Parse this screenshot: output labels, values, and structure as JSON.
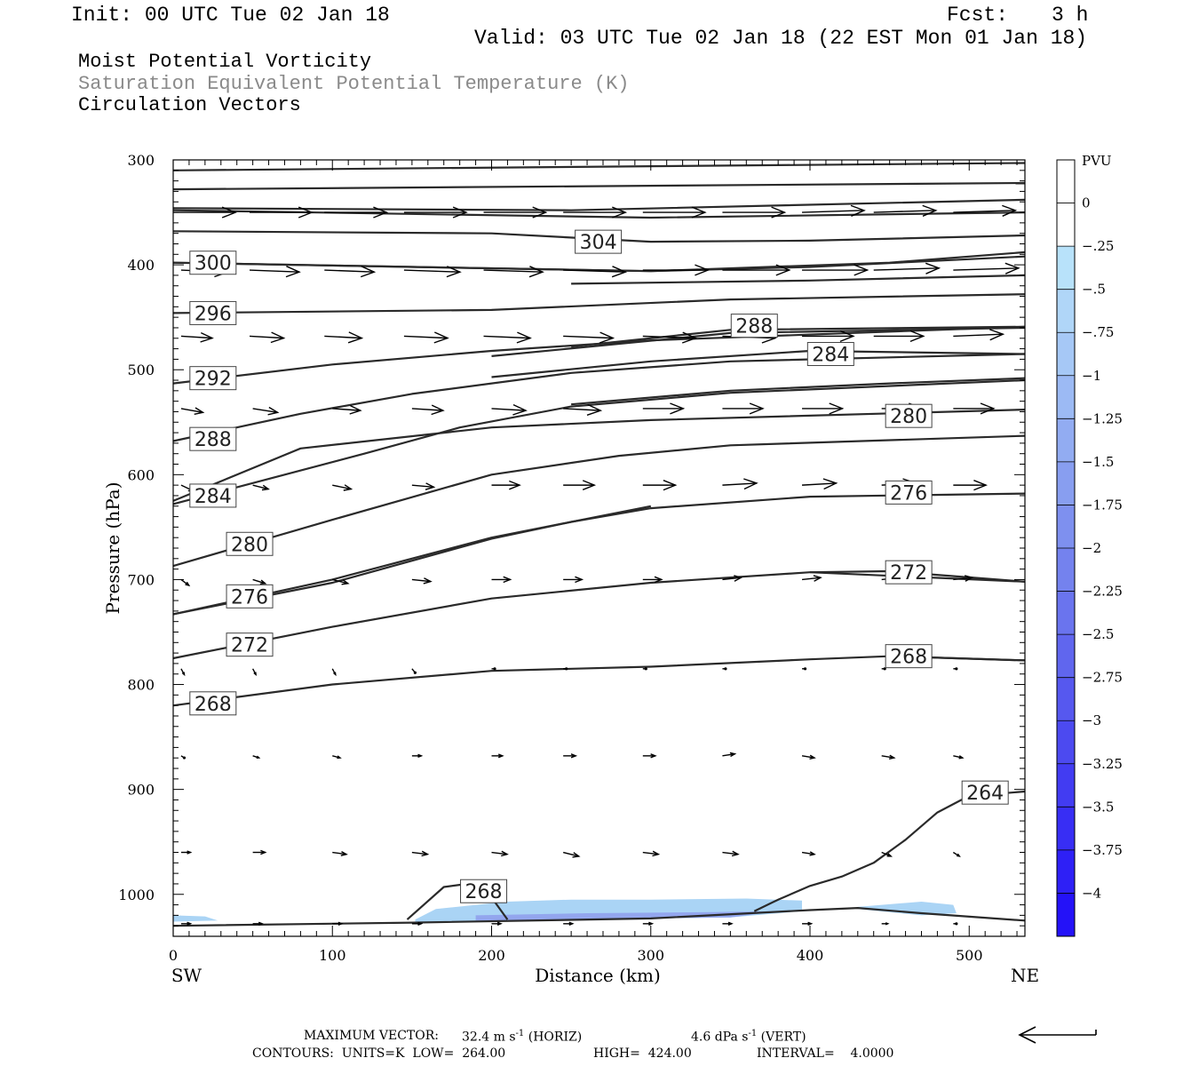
{
  "header": {
    "init": "Init: 00 UTC Tue 02 Jan 18",
    "fcst_label": "Fcst:",
    "fcst_value": "3 h",
    "valid": "Valid: 03 UTC Tue 02 Jan 18 (22 EST Mon 01 Jan 18)"
  },
  "titles": {
    "line1": "Moist Potential Vorticity",
    "line2": "Saturation Equivalent Potential Temperature (K)",
    "line3": "Circulation Vectors"
  },
  "colors": {
    "line1": "#000000",
    "line2": "#8a8a8a",
    "line3": "#000000",
    "contour": "#2a2a2a",
    "pv_fill": "#aad4f5"
  },
  "chart_data": {
    "type": "cross-section",
    "xlabel": "Distance (km)",
    "ylabel": "Pressure (hPa)",
    "xlim": [
      0,
      535
    ],
    "ylim": [
      300,
      1040
    ],
    "x_ticks": [
      "0",
      "100",
      "200",
      "300",
      "400",
      "500"
    ],
    "y_ticks": [
      "300",
      "400",
      "500",
      "600",
      "700",
      "800",
      "900",
      "1000"
    ],
    "x_end_left": "SW",
    "x_end_right": "NE",
    "colorbar": {
      "unit": "PVU",
      "labels": [
        "0",
        "-.25",
        "-.5",
        "-.75",
        "-1",
        "-1.25",
        "-1.5",
        "-1.75",
        "-2",
        "-2.25",
        "-2.5",
        "-2.75",
        "-3",
        "-3.25",
        "-3.5",
        "-3.75",
        "-4"
      ],
      "colors": [
        "#ffffff",
        "#ffffff",
        "#b8e2fa",
        "#b0d6f8",
        "#a6c8f6",
        "#9cbaf4",
        "#92acf2",
        "#889ef0",
        "#7e90ef",
        "#7482ee",
        "#6a74ee",
        "#6066ee",
        "#5658ef",
        "#4c4af0",
        "#423cf2",
        "#382ef4",
        "#2e20f6",
        "#2412f8"
      ]
    },
    "contours": [
      {
        "level": "",
        "points": [
          [
            0,
            310
          ],
          [
            535,
            303
          ]
        ]
      },
      {
        "level": "",
        "points": [
          [
            0,
            328
          ],
          [
            535,
            322
          ]
        ]
      },
      {
        "level": "",
        "points": [
          [
            0,
            346
          ],
          [
            250,
            348
          ],
          [
            535,
            338
          ]
        ]
      },
      {
        "level": "",
        "points": [
          [
            0,
            348
          ],
          [
            300,
            355
          ],
          [
            535,
            350
          ]
        ]
      },
      {
        "level": "304",
        "label_at": [
          267,
          378
        ],
        "points": [
          [
            0,
            368
          ],
          [
            200,
            370
          ],
          [
            300,
            378
          ],
          [
            400,
            377
          ],
          [
            535,
            372
          ]
        ]
      },
      {
        "level": "300",
        "label_at": [
          25,
          398
        ],
        "points": [
          [
            0,
            398
          ],
          [
            150,
            402
          ],
          [
            300,
            406
          ],
          [
            400,
            402
          ],
          [
            535,
            392
          ]
        ]
      },
      {
        "level": "",
        "points": [
          [
            0,
            398
          ],
          [
            300,
            406
          ],
          [
            450,
            398
          ],
          [
            535,
            388
          ]
        ]
      },
      {
        "level": "",
        "points": [
          [
            250,
            418
          ],
          [
            400,
            415
          ],
          [
            535,
            410
          ]
        ]
      },
      {
        "level": "296",
        "label_at": [
          25,
          446
        ],
        "points": [
          [
            0,
            446
          ],
          [
            200,
            443
          ],
          [
            350,
            433
          ],
          [
            535,
            428
          ]
        ]
      },
      {
        "level": "",
        "points": [
          [
            200,
            487
          ],
          [
            350,
            465
          ],
          [
            535,
            460
          ]
        ]
      },
      {
        "level": "288",
        "label_at": [
          365,
          458
        ],
        "points": [
          [
            250,
            478
          ],
          [
            350,
            462
          ],
          [
            535,
            459
          ]
        ]
      },
      {
        "level": "292",
        "label_at": [
          25,
          508
        ],
        "points": [
          [
            0,
            513
          ],
          [
            100,
            495
          ],
          [
            200,
            482
          ],
          [
            300,
            472
          ],
          [
            535,
            459
          ]
        ]
      },
      {
        "level": "284",
        "label_at": [
          413,
          485
        ],
        "points": [
          [
            200,
            507
          ],
          [
            300,
            492
          ],
          [
            400,
            482
          ],
          [
            535,
            485
          ]
        ]
      },
      {
        "level": "288",
        "label_at": [
          25,
          566
        ],
        "points": [
          [
            0,
            568
          ],
          [
            80,
            542
          ],
          [
            150,
            523
          ],
          [
            250,
            503
          ],
          [
            350,
            492
          ],
          [
            535,
            485
          ]
        ]
      },
      {
        "level": "280",
        "label_at": [
          462,
          544
        ],
        "points": [
          [
            250,
            533
          ],
          [
            350,
            520
          ],
          [
            450,
            513
          ],
          [
            535,
            508
          ]
        ]
      },
      {
        "level": "284",
        "label_at": [
          25,
          620
        ],
        "points": [
          [
            0,
            628
          ],
          [
            120,
            580
          ],
          [
            180,
            555
          ],
          [
            250,
            535
          ],
          [
            350,
            522
          ],
          [
            535,
            510
          ]
        ]
      },
      {
        "level": "",
        "points": [
          [
            0,
            625
          ],
          [
            80,
            575
          ],
          [
            200,
            555
          ],
          [
            300,
            548
          ],
          [
            535,
            538
          ]
        ]
      },
      {
        "level": "280",
        "label_at": [
          48,
          666
        ],
        "points": [
          [
            0,
            687
          ],
          [
            100,
            643
          ],
          [
            200,
            600
          ],
          [
            280,
            582
          ],
          [
            350,
            572
          ],
          [
            535,
            563
          ]
        ]
      },
      {
        "level": "276",
        "label_at": [
          462,
          617
        ],
        "points": [
          [
            0,
            733
          ],
          [
            100,
            703
          ],
          [
            200,
            661
          ],
          [
            250,
            645
          ],
          [
            300,
            632
          ],
          [
            400,
            621
          ],
          [
            535,
            618
          ]
        ]
      },
      {
        "level": "276",
        "label_at": [
          48,
          716
        ],
        "points": [
          [
            0,
            733
          ],
          [
            100,
            700
          ],
          [
            200,
            660
          ],
          [
            300,
            630
          ]
        ]
      },
      {
        "level": "272",
        "label_at": [
          48,
          762
        ],
        "points": [
          [
            0,
            775
          ],
          [
            100,
            745
          ],
          [
            200,
            718
          ],
          [
            300,
            703
          ],
          [
            400,
            693
          ],
          [
            450,
            692
          ],
          [
            535,
            702
          ]
        ]
      },
      {
        "level": "272",
        "label_at": [
          462,
          693
        ],
        "points": [
          [
            400,
            693
          ],
          [
            535,
            702
          ]
        ]
      },
      {
        "level": "268",
        "label_at": [
          25,
          818
        ],
        "points": [
          [
            0,
            820
          ],
          [
            100,
            800
          ],
          [
            200,
            787
          ],
          [
            300,
            783
          ],
          [
            400,
            776
          ],
          [
            450,
            773
          ],
          [
            535,
            777
          ]
        ]
      },
      {
        "level": "268",
        "label_at": [
          462,
          773
        ],
        "points": [
          [
            450,
            773
          ],
          [
            535,
            777
          ]
        ]
      },
      {
        "level": "264",
        "label_at": [
          510,
          903
        ],
        "points": [
          [
            365,
            1016
          ],
          [
            380,
            1005
          ],
          [
            400,
            992
          ],
          [
            420,
            983
          ],
          [
            440,
            970
          ],
          [
            460,
            948
          ],
          [
            480,
            922
          ],
          [
            495,
            910
          ],
          [
            510,
            905
          ],
          [
            535,
            902
          ]
        ]
      },
      {
        "level": "268",
        "label_at": [
          195,
          997
        ],
        "points": [
          [
            147,
            1024
          ],
          [
            170,
            993
          ],
          [
            185,
            990
          ],
          [
            200,
            1003
          ],
          [
            210,
            1024
          ]
        ]
      },
      {
        "level": "",
        "points": [
          [
            0,
            1030
          ],
          [
            150,
            1027
          ],
          [
            300,
            1023
          ],
          [
            400,
            1015
          ],
          [
            430,
            1013
          ],
          [
            470,
            1018
          ],
          [
            535,
            1025
          ]
        ]
      }
    ],
    "pv_regions": [
      {
        "level": "-.25",
        "points": [
          [
            152,
            1024
          ],
          [
            165,
            1014
          ],
          [
            210,
            1007
          ],
          [
            250,
            1005
          ],
          [
            300,
            1005
          ],
          [
            360,
            1004
          ],
          [
            395,
            1006
          ],
          [
            395,
            1016
          ],
          [
            350,
            1022
          ],
          [
            250,
            1024
          ],
          [
            152,
            1027
          ]
        ]
      },
      {
        "level": "-.25",
        "points": [
          [
            0,
            1020
          ],
          [
            20,
            1021
          ],
          [
            28,
            1025
          ],
          [
            0,
            1026
          ]
        ]
      },
      {
        "level": "-.25",
        "points": [
          [
            430,
            1012
          ],
          [
            470,
            1007
          ],
          [
            490,
            1010
          ],
          [
            492,
            1018
          ],
          [
            470,
            1020
          ],
          [
            430,
            1014
          ]
        ]
      }
    ],
    "vector_rows": [
      {
        "pressure": 350,
        "x": [
          0,
          48,
          95,
          145,
          195,
          245,
          295,
          345,
          395,
          440,
          490
        ],
        "u": [
          40,
          40,
          40,
          40,
          40,
          40,
          40,
          40,
          40,
          40,
          40
        ],
        "v": [
          0,
          0,
          0,
          0,
          0,
          0,
          0,
          0,
          -1,
          -1,
          -1
        ]
      },
      {
        "pressure": 405,
        "x": [
          5,
          48,
          95,
          145,
          195,
          245,
          295,
          345,
          395,
          440,
          490
        ],
        "u": [
          30,
          32,
          32,
          36,
          38,
          40,
          42,
          43,
          42,
          42,
          42
        ],
        "v": [
          1,
          1,
          1,
          1,
          1,
          1,
          0,
          0,
          0,
          -1,
          -1
        ]
      },
      {
        "pressure": 468,
        "x": [
          5,
          48,
          95,
          145,
          195,
          245,
          295,
          345,
          395,
          440,
          490
        ],
        "u": [
          20,
          22,
          24,
          28,
          30,
          32,
          34,
          34,
          33,
          32,
          32
        ],
        "v": [
          1,
          1,
          1,
          1,
          1,
          1,
          1,
          1,
          0,
          0,
          -1
        ]
      },
      {
        "pressure": 537,
        "x": [
          5,
          50,
          100,
          150,
          200,
          245,
          295,
          345,
          395,
          445,
          490
        ],
        "u": [
          14,
          16,
          18,
          20,
          22,
          24,
          26,
          26,
          26,
          26,
          26
        ],
        "v": [
          2,
          2,
          1,
          1,
          1,
          1,
          0,
          0,
          0,
          0,
          0
        ]
      },
      {
        "pressure": 610,
        "x": [
          5,
          50,
          100,
          150,
          200,
          245,
          295,
          345,
          395,
          445,
          490
        ],
        "u": [
          8,
          10,
          12,
          14,
          18,
          20,
          21,
          22,
          22,
          22,
          21
        ],
        "v": [
          3,
          2,
          2,
          1,
          0,
          0,
          0,
          -1,
          -1,
          -1,
          0
        ]
      },
      {
        "pressure": 700,
        "x": [
          5,
          50,
          100,
          150,
          200,
          245,
          295,
          345,
          395,
          445,
          490
        ],
        "u": [
          5,
          8,
          10,
          12,
          12,
          12,
          12,
          12,
          12,
          12,
          12
        ],
        "v": [
          3,
          2,
          2,
          1,
          0,
          0,
          0,
          -1,
          -1,
          -1,
          -1
        ]
      },
      {
        "pressure": 785,
        "x": [
          5,
          50,
          100,
          150,
          200,
          245,
          295,
          345,
          395,
          445,
          490
        ],
        "u": [
          2,
          2,
          2,
          2,
          2,
          2,
          2,
          2,
          2,
          2,
          2
        ],
        "v": [
          3,
          3,
          3,
          2,
          0,
          0,
          0,
          0,
          0,
          0,
          0
        ]
      },
      {
        "pressure": 868,
        "x": [
          5,
          50,
          100,
          150,
          200,
          245,
          295,
          345,
          395,
          445,
          490
        ],
        "u": [
          2,
          4,
          5,
          6,
          7,
          8,
          8,
          8,
          8,
          8,
          6
        ],
        "v": [
          1,
          1,
          1,
          0,
          0,
          0,
          0,
          -1,
          1,
          1,
          1
        ]
      },
      {
        "pressure": 960,
        "x": [
          5,
          50,
          100,
          150,
          200,
          245,
          295,
          345,
          395,
          445,
          490
        ],
        "u": [
          6,
          8,
          9,
          10,
          10,
          10,
          10,
          10,
          8,
          6,
          4
        ],
        "v": [
          0,
          0,
          1,
          1,
          1,
          2,
          1,
          1,
          1,
          2,
          2
        ]
      },
      {
        "pressure": 1028,
        "x": [
          5,
          50,
          100,
          150,
          200,
          245,
          295,
          345,
          395,
          445,
          490
        ],
        "u": [
          6,
          6,
          6,
          6,
          6,
          6,
          6,
          6,
          6,
          4,
          2
        ],
        "v": [
          0,
          0,
          0,
          0,
          0,
          0,
          0,
          0,
          0,
          0,
          0
        ]
      }
    ]
  },
  "footer": {
    "max_vector_label": "MAXIMUM VECTOR:",
    "horiz_value": "32.4 m s",
    "horiz_unit_exp": "-1",
    "horiz_tag": "(HORIZ)",
    "vert_value": "4.6 dPa s",
    "vert_unit_exp": "-1",
    "vert_tag": "(VERT)",
    "contours": "CONTOURS:  UNITS=K  LOW=  264.00",
    "high": "HIGH=  424.00",
    "interval": "INTERVAL=    4.0000"
  }
}
